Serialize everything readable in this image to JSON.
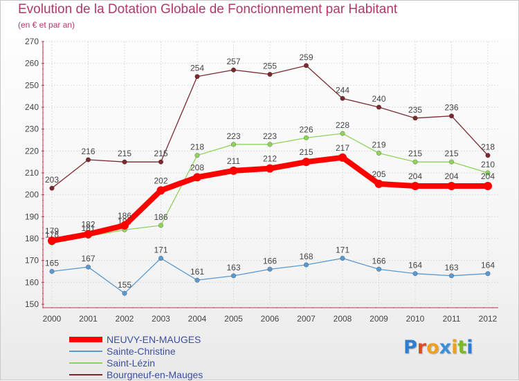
{
  "header": {
    "title": "Evolution de la Dotation Globale de Fonctionnement par Habitant",
    "subtitle": "(en € et par an)"
  },
  "logo": {
    "text": "Proxiti",
    "letter_colors": [
      "#2c7fd0",
      "#e04a2a",
      "#f0a020",
      "#3a8fd8",
      "#f0a020",
      "#7ab82a",
      "#2c7fd0"
    ]
  },
  "chart_data": {
    "type": "line",
    "title": "Evolution de la Dotation Globale de Fonctionnement par Habitant",
    "subtitle": "(en € et par an)",
    "x": [
      "2000",
      "2001",
      "2002",
      "2003",
      "2004",
      "2005",
      "2006",
      "2007",
      "2008",
      "2009",
      "2010",
      "2011",
      "2012"
    ],
    "ylim": [
      150,
      270
    ],
    "yticks": [
      150,
      160,
      170,
      180,
      190,
      200,
      210,
      220,
      230,
      240,
      250,
      260,
      270
    ],
    "grid": true,
    "legend_position": "bottom-left",
    "series": [
      {
        "name": "Bourgneuf-en-Mauges",
        "color": "#7a2a2e",
        "values": [
          203,
          216,
          215,
          215,
          254,
          257,
          255,
          259,
          244,
          240,
          235,
          236,
          218
        ]
      },
      {
        "name": "Saint-Lézin",
        "color": "#8ed35a",
        "values": [
          178,
          181,
          184,
          186,
          218,
          223,
          223,
          226,
          228,
          219,
          215,
          215,
          210
        ]
      },
      {
        "name": "Sainte-Christine",
        "color": "#5a9ad0",
        "values": [
          165,
          167,
          155,
          171,
          161,
          163,
          166,
          168,
          171,
          166,
          164,
          163,
          164
        ]
      },
      {
        "name": "NEUVY-EN-MAUGES",
        "color": "#ff0000",
        "values": [
          179,
          182,
          186,
          202,
          208,
          211,
          212,
          215,
          217,
          205,
          204,
          204,
          204
        ]
      }
    ]
  },
  "legend": [
    {
      "label": "NEUVY-EN-MAUGES",
      "color": "#ff0000",
      "weight": 8
    },
    {
      "label": "Sainte-Christine",
      "color": "#5a9ad0",
      "weight": 2
    },
    {
      "label": "Saint-Lézin",
      "color": "#8ed35a",
      "weight": 2
    },
    {
      "label": "Bourgneuf-en-Mauges",
      "color": "#7a2a2e",
      "weight": 2
    }
  ]
}
